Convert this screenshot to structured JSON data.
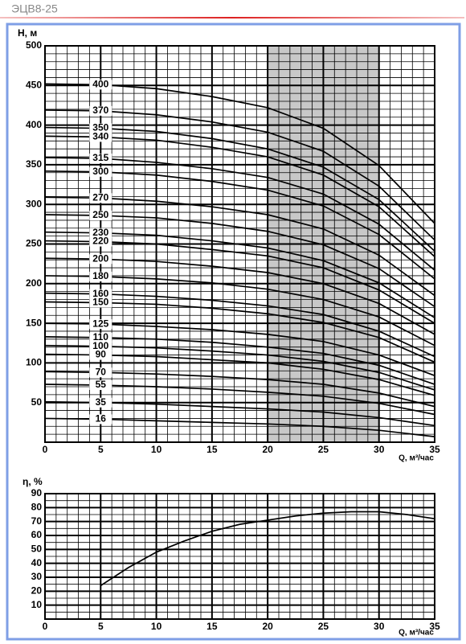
{
  "title": "ЭЦВ8-25",
  "chart_data": [
    {
      "type": "line",
      "ylabel": "H, м",
      "xlabel": "Q, м³/час",
      "x": [
        0,
        5,
        10,
        15,
        20,
        25,
        30,
        35
      ],
      "xlim": [
        0,
        35
      ],
      "xticks": [
        0,
        5,
        10,
        15,
        20,
        25,
        30,
        35
      ],
      "ylim": [
        0,
        500
      ],
      "yticks": [
        50,
        100,
        150,
        200,
        250,
        300,
        350,
        400,
        450,
        500
      ],
      "grid": true,
      "highlight_range": [
        20,
        30
      ],
      "highlight_color": "#c8c8c8",
      "series": [
        {
          "name": "400",
          "color": "#000000",
          "values": [
            452,
            451,
            446,
            436,
            422,
            396,
            349,
            276
          ]
        },
        {
          "name": "370",
          "color": "#000000",
          "values": [
            419,
            418,
            413,
            404,
            391,
            367,
            323,
            255
          ]
        },
        {
          "name": "350",
          "color": "#000000",
          "values": [
            397,
            396,
            392,
            383,
            370,
            347,
            306,
            241
          ]
        },
        {
          "name": "340",
          "color": "#000000",
          "values": [
            386,
            385,
            381,
            372,
            360,
            337,
            297,
            234
          ]
        },
        {
          "name": "315",
          "color": "#000000",
          "values": [
            359,
            358,
            353,
            345,
            334,
            313,
            275,
            217
          ]
        },
        {
          "name": "300",
          "color": "#000000",
          "values": [
            342,
            341,
            337,
            329,
            318,
            298,
            262,
            206
          ]
        },
        {
          "name": "270",
          "color": "#000000",
          "values": [
            309,
            308,
            304,
            297,
            287,
            269,
            236,
            185
          ]
        },
        {
          "name": "250",
          "color": "#000000",
          "values": [
            287,
            286,
            283,
            276,
            266,
            249,
            219,
            171
          ]
        },
        {
          "name": "230",
          "color": "#000000",
          "values": [
            265,
            264,
            261,
            254,
            245,
            229,
            201,
            157
          ]
        },
        {
          "name": "220",
          "color": "#000000",
          "values": [
            254,
            253,
            250,
            243,
            235,
            220,
            192,
            150
          ]
        },
        {
          "name": "200",
          "color": "#000000",
          "values": [
            232,
            231,
            228,
            222,
            214,
            200,
            175,
            136
          ]
        },
        {
          "name": "180",
          "color": "#000000",
          "values": [
            210,
            209,
            206,
            201,
            193,
            180,
            158,
            122
          ]
        },
        {
          "name": "160",
          "color": "#000000",
          "values": [
            188,
            187,
            184,
            179,
            172,
            161,
            140,
            108
          ]
        },
        {
          "name": "150",
          "color": "#000000",
          "values": [
            177,
            176,
            174,
            169,
            162,
            151,
            132,
            101
          ]
        },
        {
          "name": "125",
          "color": "#000000",
          "values": [
            150,
            149,
            146,
            142,
            136,
            127,
            110,
            84
          ]
        },
        {
          "name": "110",
          "color": "#000000",
          "values": [
            133,
            132,
            130,
            126,
            120,
            112,
            97,
            73
          ]
        },
        {
          "name": "100",
          "color": "#000000",
          "values": [
            122,
            121,
            119,
            115,
            110,
            102,
            88,
            66
          ]
        },
        {
          "name": "90",
          "color": "#000000",
          "values": [
            111,
            110,
            108,
            104,
            100,
            92,
            79,
            59
          ]
        },
        {
          "name": "70",
          "color": "#000000",
          "values": [
            89,
            88,
            86,
            83,
            79,
            73,
            62,
            45
          ]
        },
        {
          "name": "55",
          "color": "#000000",
          "values": [
            73,
            72,
            70,
            67,
            63,
            58,
            49,
            35
          ]
        },
        {
          "name": "35",
          "color": "#000000",
          "values": [
            51,
            50,
            48,
            45,
            42,
            38,
            31,
            21
          ]
        },
        {
          "name": "16",
          "color": "#000000",
          "values": [
            30,
            29,
            27,
            25,
            23,
            20,
            15,
            7
          ]
        }
      ]
    },
    {
      "type": "line",
      "ylabel": "η, %",
      "xlabel": "Q, м³/час",
      "x": [
        5,
        7.5,
        10,
        12.5,
        15,
        17.5,
        20,
        22.5,
        25,
        27.5,
        30,
        32.5,
        35
      ],
      "xlim": [
        0,
        35
      ],
      "xticks": [
        0,
        5,
        10,
        15,
        20,
        25,
        30,
        35
      ],
      "ylim": [
        0,
        90
      ],
      "yticks": [
        10,
        20,
        30,
        40,
        50,
        60,
        70,
        80,
        90
      ],
      "grid": true,
      "series": [
        {
          "color": "#000000",
          "values": [
            24,
            37,
            48,
            56,
            63,
            68,
            71,
            74,
            76,
            77,
            77,
            75,
            72
          ]
        }
      ]
    }
  ]
}
